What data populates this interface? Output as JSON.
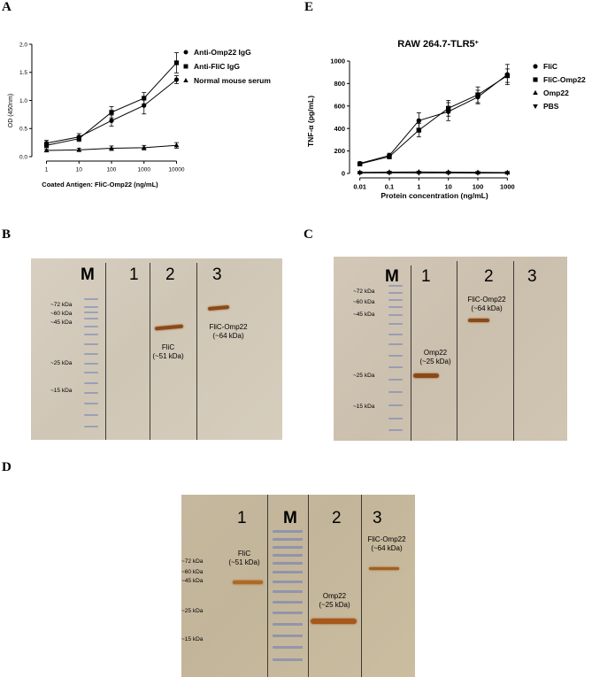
{
  "panel_letters": {
    "a": "A",
    "e": "E",
    "b": "B",
    "c": "C",
    "d": "D"
  },
  "chart_data": [
    {
      "type": "line",
      "panel": "A",
      "title": "",
      "xlabel": "Coated Antigen: FliC-Omp22 (ng/mL)",
      "ylabel": "OD (450nm)",
      "x_scale": "log",
      "categories": [
        "1",
        "10",
        "100",
        "1000",
        "10000"
      ],
      "x": [
        1,
        10,
        100,
        1000,
        10000
      ],
      "yticks": [
        "0.0",
        "0.5",
        "1.0",
        "1.5",
        "2.0"
      ],
      "ylim": [
        0,
        2.0
      ],
      "legend_position": "top-right",
      "series": [
        {
          "name": "Anti-Omp22 IgG",
          "marker": "circle",
          "values": [
            0.24,
            0.35,
            0.64,
            0.91,
            1.37
          ],
          "errors": [
            0.05,
            0.06,
            0.1,
            0.15,
            0.07
          ]
        },
        {
          "name": "Anti-FliC IgG",
          "marker": "square",
          "values": [
            0.2,
            0.32,
            0.79,
            1.04,
            1.67
          ],
          "errors": [
            0.04,
            0.05,
            0.1,
            0.1,
            0.18
          ]
        },
        {
          "name": "Normal mouse serum",
          "marker": "triangle-up",
          "values": [
            0.11,
            0.12,
            0.15,
            0.16,
            0.2
          ],
          "errors": [
            0.02,
            0.03,
            0.04,
            0.04,
            0.05
          ]
        }
      ]
    },
    {
      "type": "line",
      "panel": "E",
      "title": "RAW 264.7-TLR5",
      "title_superscript": "+",
      "xlabel": "Protein concentration (ng/mL)",
      "ylabel": "TNF-α (pg/mL)",
      "x_scale": "log",
      "categories": [
        "0.01",
        "0.1",
        "1",
        "10",
        "100",
        "1000"
      ],
      "x": [
        0.01,
        0.1,
        1,
        10,
        100,
        1000
      ],
      "yticks": [
        "0",
        "200",
        "400",
        "600",
        "800",
        "1000"
      ],
      "ylim": [
        0,
        1000
      ],
      "legend_position": "top-right",
      "series": [
        {
          "name": "FliC",
          "marker": "circle",
          "values": [
            90,
            160,
            470,
            550,
            680,
            880
          ],
          "errors": [
            10,
            20,
            70,
            80,
            60,
            90
          ]
        },
        {
          "name": "FliC-Omp22",
          "marker": "square",
          "values": [
            85,
            150,
            385,
            580,
            700,
            870
          ],
          "errors": [
            10,
            20,
            60,
            70,
            70,
            60
          ]
        },
        {
          "name": "Omp22",
          "marker": "triangle-up",
          "values": [
            10,
            12,
            14,
            12,
            10,
            8
          ],
          "errors": [
            4,
            4,
            4,
            4,
            4,
            4
          ]
        },
        {
          "name": "PBS",
          "marker": "triangle-down",
          "values": [
            5,
            6,
            5,
            5,
            4,
            4
          ],
          "errors": [
            3,
            3,
            3,
            3,
            3,
            3
          ]
        }
      ]
    }
  ],
  "blot_b": {
    "lanes": [
      "M",
      "1",
      "2",
      "3"
    ],
    "markers": [
      "~72 kDa",
      "~60 kDa",
      "~45 kDa",
      "~25 kDa",
      "~15 kDa"
    ],
    "bands": [
      {
        "label_line1": "FliC",
        "label_line2": "(~51 kDa)"
      },
      {
        "label_line1": "FliC-Omp22",
        "label_line2": "(~64 kDa)"
      }
    ]
  },
  "blot_c": {
    "lanes": [
      "M",
      "1",
      "2",
      "3"
    ],
    "markers": [
      "~72 kDa",
      "~60 kDa",
      "~45 kDa",
      "~25 kDa",
      "~15 kDa"
    ],
    "bands": [
      {
        "label_line1": "Omp22",
        "label_line2": "(~25 kDa)"
      },
      {
        "label_line1": "FliC-Omp22",
        "label_line2": "(~64 kDa)"
      }
    ]
  },
  "blot_d": {
    "lanes": [
      "1",
      "M",
      "2",
      "3"
    ],
    "markers": [
      "~72 kDa",
      "~60 kDa",
      "~45 kDa",
      "~25 kDa",
      "~15 kDa"
    ],
    "bands": [
      {
        "label_line1": "FliC",
        "label_line2": "(~51 kDa)"
      },
      {
        "label_line1": "Omp22",
        "label_line2": "(~25 kDa)"
      },
      {
        "label_line1": "FliC-Omp22",
        "label_line2": "(~64 kDa)"
      }
    ]
  }
}
